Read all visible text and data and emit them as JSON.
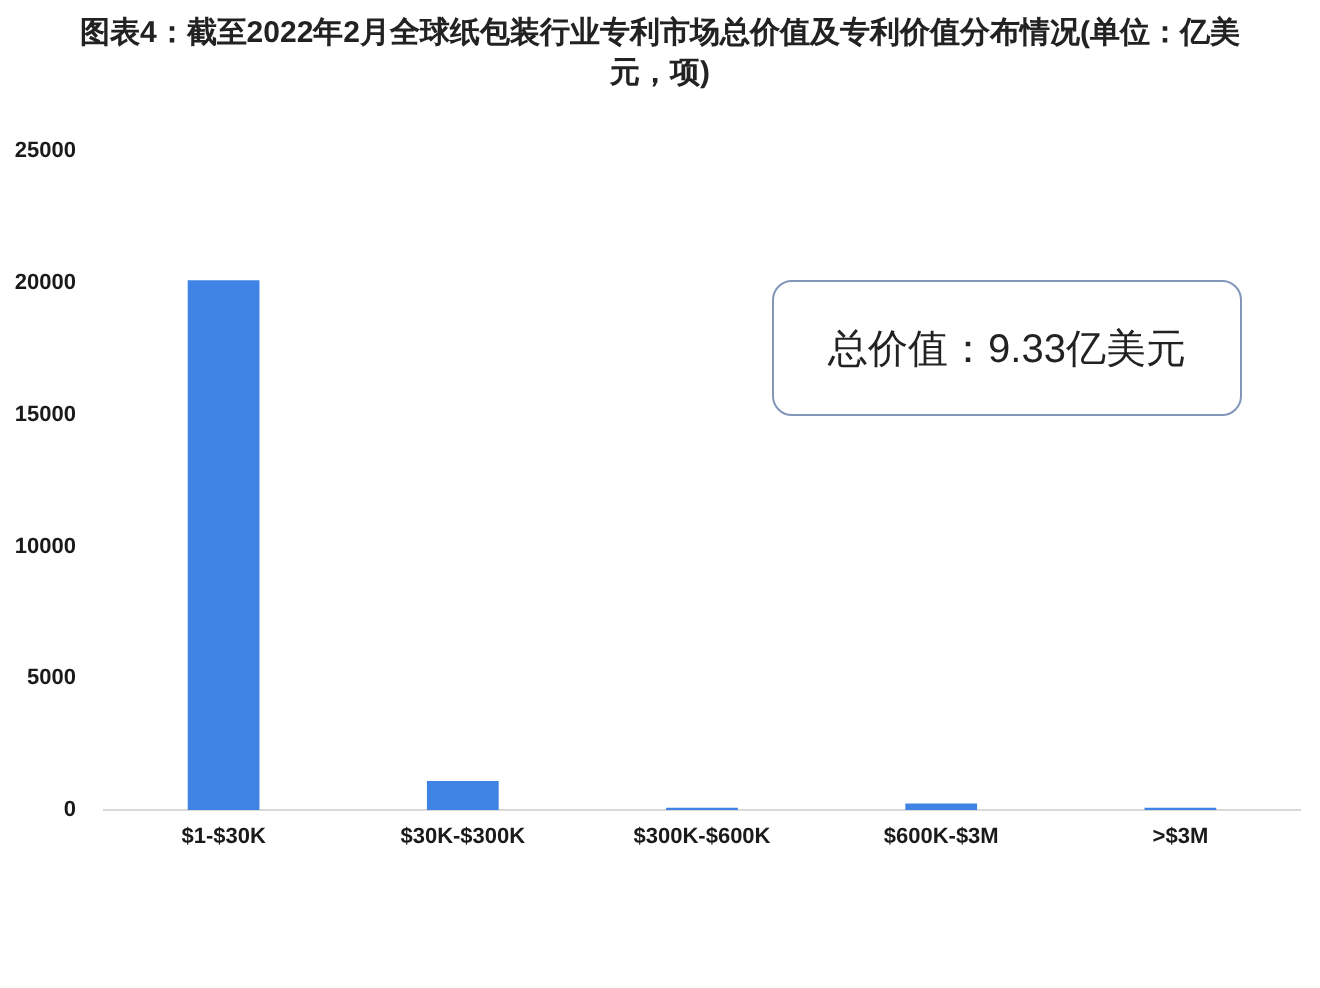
{
  "chart_data": {
    "type": "bar",
    "title": "图表4：截至2022年2月全球纸包装行业专利市场总价值及专利价值分布情况(单位：亿美元，项)",
    "categories": [
      "$1-$30K",
      "$30K-$300K",
      "$300K-$600K",
      "$600K-$3M",
      ">$3M"
    ],
    "values": [
      20100,
      1100,
      90,
      250,
      90
    ],
    "color": "#3f83e5",
    "ylim": [
      0,
      25000
    ],
    "yticks": [
      0,
      5000,
      10000,
      15000,
      20000,
      25000
    ],
    "annotations": [
      "总价值：9.33亿美元"
    ]
  }
}
